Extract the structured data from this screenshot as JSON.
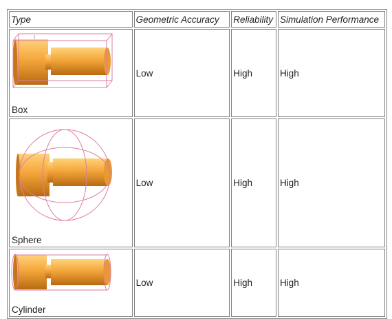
{
  "table": {
    "headers": [
      "Type",
      "Geometric Accuracy",
      "Reliability",
      "Simulation Performance"
    ],
    "rows": [
      {
        "type": "Box",
        "accuracy": "Low",
        "reliability": "High",
        "performance": "High",
        "image": "box-collision-shape-image"
      },
      {
        "type": "Sphere",
        "accuracy": "Low",
        "reliability": "High",
        "performance": "High",
        "image": "sphere-collision-shape-image"
      },
      {
        "type": "Cylinder",
        "accuracy": "Low",
        "reliability": "High",
        "performance": "High",
        "image": "cylinder-collision-shape-image"
      }
    ]
  },
  "colors": {
    "border": "#808080",
    "part_orange": "#f2a23c",
    "bounding_shape": "#e07aa0"
  }
}
